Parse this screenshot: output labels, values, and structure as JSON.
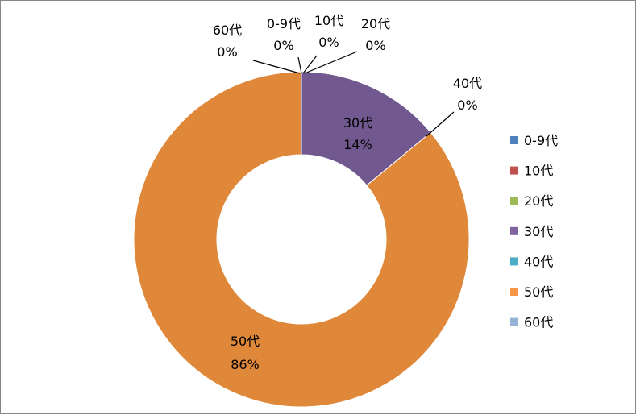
{
  "chart_data": {
    "type": "pie",
    "variant": "doughnut",
    "title": "",
    "categories": [
      "0-9代",
      "10代",
      "20代",
      "30代",
      "40代",
      "50代",
      "60代"
    ],
    "values": [
      0,
      0,
      0,
      14,
      0,
      86,
      0
    ],
    "data_labels": [
      {
        "name": "0-9代",
        "percent": "0%"
      },
      {
        "name": "10代",
        "percent": "0%"
      },
      {
        "name": "20代",
        "percent": "0%"
      },
      {
        "name": "30代",
        "percent": "14%"
      },
      {
        "name": "40代",
        "percent": "0%"
      },
      {
        "name": "50代",
        "percent": "86%"
      },
      {
        "name": "60代",
        "percent": "0%"
      }
    ],
    "colors": [
      "#4f81bd",
      "#c0504d",
      "#9bbb59",
      "#8064a2",
      "#4bacc6",
      "#f79646",
      "#95b3d7"
    ],
    "slice_colors": [
      "#4f81bd",
      "#c0504d",
      "#9bbb59",
      "#71588f",
      "#4bacc6",
      "#e0883a",
      "#95b3d7"
    ],
    "legend": {
      "position": "right",
      "entries": [
        "0-9代",
        "10代",
        "20代",
        "30代",
        "40代",
        "50代",
        "60代"
      ]
    }
  }
}
